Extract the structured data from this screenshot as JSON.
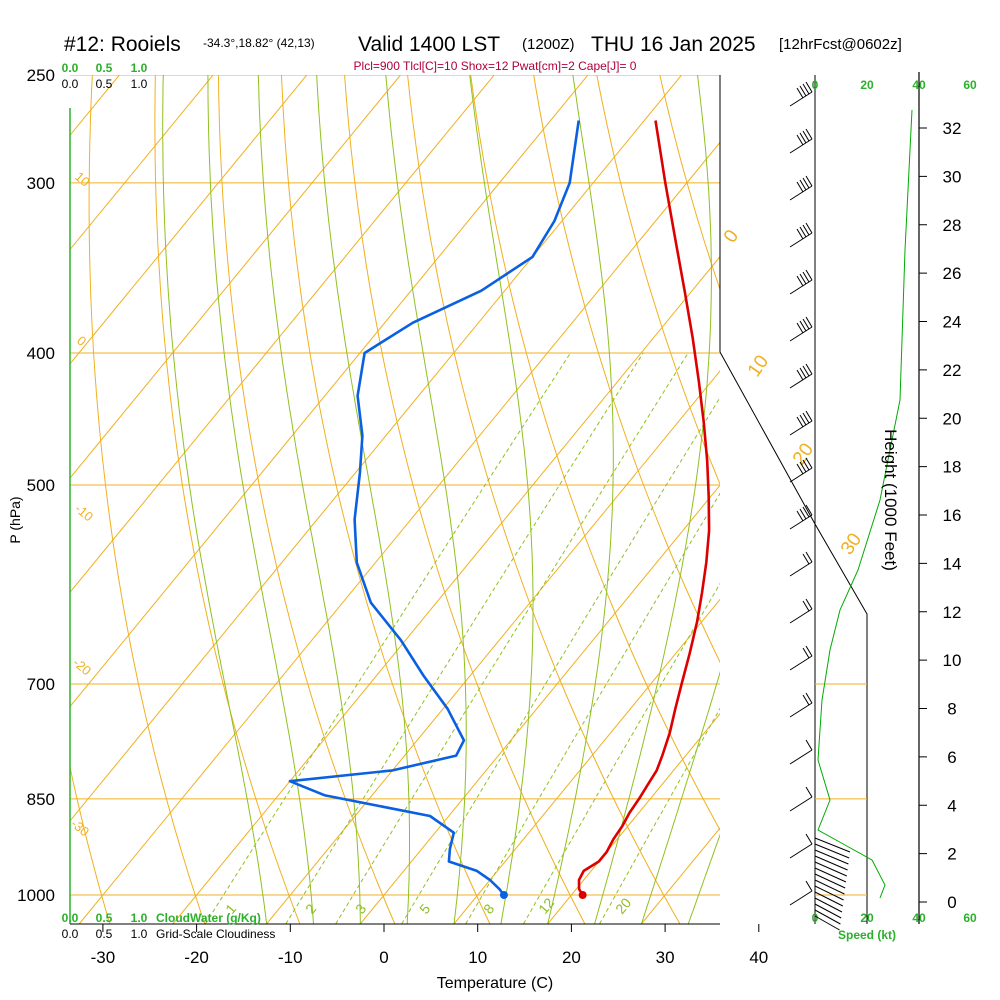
{
  "header": {
    "station": "#12: Rooiels",
    "coords": "-34.3°,18.82° (42,13)",
    "valid": "Valid 1400 LST",
    "utc": "(1200Z)",
    "date": "THU 16 Jan 2025",
    "forecast": "[12hrFcst@0602z]",
    "indices": "Plcl=900 Tlcl[C]=10 Shox=12 Pwat[cm]=2 Cape[J]= 0"
  },
  "chart_data": {
    "type": "line",
    "diagram": "skew-T log-P",
    "xlabel": "Temperature (C)",
    "ylabel": "P (hPa)",
    "right_label": "Height (1000 Feet)",
    "x_ticks": [
      -30,
      -20,
      -10,
      0,
      10,
      20,
      30,
      40
    ],
    "p_ticks": [
      250,
      300,
      400,
      500,
      700,
      850,
      1000
    ],
    "height_ticks": [
      0,
      2,
      4,
      6,
      8,
      10,
      12,
      14,
      16,
      18,
      20,
      22,
      24,
      26,
      28,
      30,
      32
    ],
    "isotherm_labels": [
      "-10",
      "0",
      "10",
      "20",
      "30"
    ],
    "dry_adiabat_labels": [
      "10",
      "0",
      "-10",
      "-20",
      "-30"
    ],
    "mixing_ratio_labels": [
      "1",
      "2",
      "3",
      "5",
      "8",
      "12",
      "20"
    ],
    "cloudwater_scale": [
      "0.0",
      "0.5",
      "1.0"
    ],
    "cloudwater_label": "CloudWater (g/Kg)",
    "cloudiness_scale": [
      "0.0",
      "0.5",
      "1.0"
    ],
    "cloudiness_label": "Grid-Scale Cloudiness",
    "speed_ticks": [
      "0",
      "20",
      "40",
      "60"
    ],
    "speed_label": "Speed (kt)",
    "temperature": {
      "color": "#dd0000",
      "points": [
        [
          21.2,
          1000
        ],
        [
          20.3,
          990
        ],
        [
          19.5,
          975
        ],
        [
          19.2,
          960
        ],
        [
          20.0,
          945
        ],
        [
          20.0,
          930
        ],
        [
          19.6,
          910
        ],
        [
          19.4,
          890
        ],
        [
          19.0,
          870
        ],
        [
          18.8,
          850
        ],
        [
          18.5,
          830
        ],
        [
          18.2,
          810
        ],
        [
          17.5,
          790
        ],
        [
          16.3,
          760
        ],
        [
          14.8,
          730
        ],
        [
          13.3,
          700
        ],
        [
          11.5,
          665
        ],
        [
          9.5,
          630
        ],
        [
          7.5,
          600
        ],
        [
          5.3,
          570
        ],
        [
          2.8,
          540
        ],
        [
          -0.2,
          510
        ],
        [
          -3.5,
          480
        ],
        [
          -7.2,
          450
        ],
        [
          -11.3,
          420
        ],
        [
          -15.8,
          390
        ],
        [
          -20.8,
          360
        ],
        [
          -26.3,
          330
        ],
        [
          -32.3,
          300
        ],
        [
          -38.8,
          270
        ]
      ]
    },
    "dewpoint": {
      "color": "#0a60e0",
      "points": [
        [
          12.8,
          1000
        ],
        [
          11.8,
          990
        ],
        [
          10.0,
          975
        ],
        [
          7.8,
          960
        ],
        [
          4.0,
          945
        ],
        [
          3.0,
          925
        ],
        [
          2.0,
          900
        ],
        [
          -2.0,
          875
        ],
        [
          -15.0,
          845
        ],
        [
          -20.0,
          825
        ],
        [
          -10.0,
          810
        ],
        [
          -4.5,
          790
        ],
        [
          -5.0,
          770
        ],
        [
          -9.5,
          730
        ],
        [
          -15.0,
          690
        ],
        [
          -20.5,
          650
        ],
        [
          -27.0,
          610
        ],
        [
          -32.0,
          570
        ],
        [
          -36.0,
          530
        ],
        [
          -39.5,
          490
        ],
        [
          -42.5,
          460
        ],
        [
          -46.5,
          430
        ],
        [
          -49.5,
          400
        ],
        [
          -47.0,
          380
        ],
        [
          -42.5,
          360
        ],
        [
          -40.0,
          340
        ],
        [
          -40.8,
          320
        ],
        [
          -42.5,
          300
        ],
        [
          -47.0,
          270
        ]
      ]
    },
    "height_profile_color": "#00aa00"
  }
}
